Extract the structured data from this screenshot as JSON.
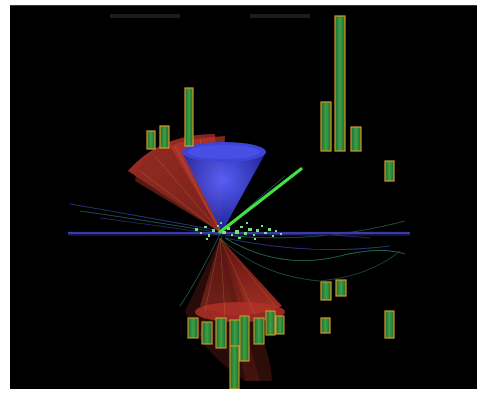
{
  "image": {
    "subject": "",
    "colors": {
      "background": "#000000",
      "beam_axis": "#3a3aa8",
      "cone_red": "#b42a28",
      "cone_blue": "#2f36c8",
      "track_green": "#43e046",
      "tower_green": "#2e8a3a",
      "tower_orange": "#d89a2a",
      "hits": "#7be07e"
    }
  }
}
